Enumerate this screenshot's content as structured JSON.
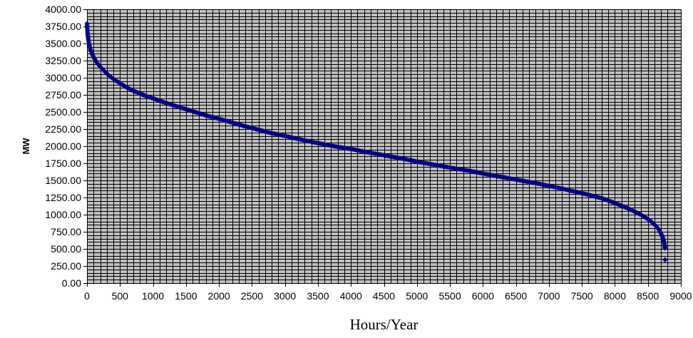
{
  "chart_data": {
    "type": "scatter",
    "title": "",
    "xlabel": "Hours/Year",
    "ylabel": "MW",
    "xlim": [
      0,
      9000
    ],
    "ylim": [
      0,
      4000
    ],
    "x_ticks": [
      0,
      500,
      1000,
      1500,
      2000,
      2500,
      3000,
      3500,
      4000,
      4500,
      5000,
      5500,
      6000,
      6500,
      7000,
      7500,
      8000,
      8500,
      9000
    ],
    "x_tick_labels": [
      "0",
      "500",
      "1000",
      "1500",
      "2000",
      "2500",
      "3000",
      "3500",
      "4000",
      "4500",
      "5000",
      "5500",
      "6000",
      "6500",
      "7000",
      "7500",
      "8000",
      "8500",
      "9000"
    ],
    "y_ticks": [
      0,
      250,
      500,
      750,
      1000,
      1250,
      1500,
      1750,
      2000,
      2250,
      2500,
      2750,
      3000,
      3250,
      3500,
      3750,
      4000
    ],
    "y_tick_labels": [
      "0.00",
      "250.00",
      "500.00",
      "750.00",
      "1000.00",
      "1250.00",
      "1500.00",
      "1750.00",
      "2000.00",
      "2250.00",
      "2500.00",
      "2750.00",
      "3000.00",
      "3250.00",
      "3500.00",
      "3750.00",
      "4000.00"
    ],
    "grid": true,
    "plot_background": "#c0c0c0",
    "marker_color": "#000080",
    "series": [
      {
        "x": [
          0,
          10,
          25,
          50,
          75,
          100,
          150,
          200,
          300,
          400,
          500,
          600,
          700,
          800,
          900,
          1000,
          1200,
          1400,
          1600,
          1800,
          2000,
          2200,
          2400,
          2600,
          2800,
          3000,
          3200,
          3400,
          3600,
          3800,
          4000,
          4200,
          4400,
          4600,
          4800,
          5000,
          5200,
          5400,
          5600,
          5800,
          6000,
          6200,
          6400,
          6600,
          6800,
          7000,
          7200,
          7400,
          7600,
          7800,
          8000,
          8100,
          8200,
          8300,
          8400,
          8500,
          8550,
          8600,
          8650,
          8680,
          8700,
          8720,
          8740,
          8750,
          8755,
          8758,
          8760
        ],
        "y": [
          3790,
          3640,
          3520,
          3420,
          3360,
          3300,
          3220,
          3160,
          3060,
          2980,
          2920,
          2860,
          2810,
          2770,
          2730,
          2700,
          2630,
          2570,
          2510,
          2450,
          2400,
          2345,
          2290,
          2240,
          2190,
          2150,
          2105,
          2065,
          2025,
          1990,
          1960,
          1920,
          1885,
          1850,
          1815,
          1775,
          1740,
          1705,
          1670,
          1640,
          1600,
          1565,
          1530,
          1495,
          1460,
          1420,
          1380,
          1335,
          1290,
          1240,
          1170,
          1130,
          1090,
          1045,
          995,
          935,
          900,
          855,
          800,
          760,
          720,
          680,
          620,
          575,
          540,
          510,
          340
        ]
      }
    ]
  }
}
